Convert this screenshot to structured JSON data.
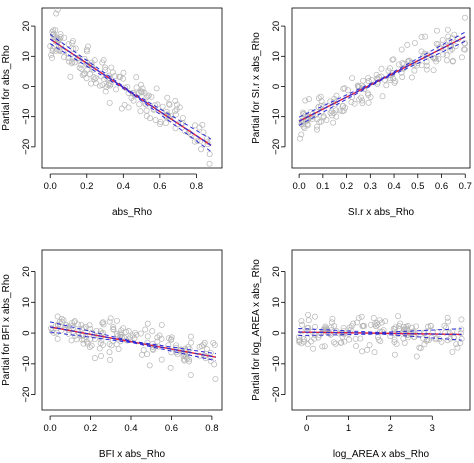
{
  "chart_data": [
    {
      "type": "scatter",
      "xlabel": "abs_Rho",
      "ylabel": "Partial for abs_Rho",
      "xlim": [
        -0.045,
        0.94
      ],
      "ylim": [
        -27,
        26
      ],
      "xticks": [
        0.0,
        0.2,
        0.4,
        0.6,
        0.8
      ],
      "xtick_labels": [
        "0.0",
        "0.2",
        "0.4",
        "0.6",
        "0.8"
      ],
      "yticks": [
        -20,
        -10,
        0,
        10,
        20
      ],
      "ytick_labels": [
        "−20",
        "−10",
        "0",
        "10",
        "20"
      ],
      "grid": false,
      "n_points": 180,
      "noise": 3.2,
      "seed": 11,
      "x_range": [
        0.0,
        0.88
      ],
      "fit": {
        "slope": -40.0,
        "intercept": 15.7
      },
      "ci_width": [
        1.3,
        1.8
      ],
      "series": [
        {
          "values": [
            [
              0.0,
              15.7
            ],
            [
              0.88,
              -19.5
            ]
          ]
        },
        {
          "values": [
            [
              0.0,
              15.7
            ],
            [
              0.88,
              -19.5
            ]
          ]
        }
      ],
      "colors": {
        "points": "#b5b5b5",
        "fit_line": "#e8233b",
        "ci_line": "#2b2bd6"
      }
    },
    {
      "type": "scatter",
      "xlabel": "SI.r x abs_Rho",
      "ylabel": "Partial for SI.r x abs_Rho",
      "xlim": [
        -0.03,
        0.72
      ],
      "ylim": [
        -27,
        26
      ],
      "xticks": [
        0.0,
        0.1,
        0.2,
        0.3,
        0.4,
        0.5,
        0.6,
        0.7
      ],
      "xtick_labels": [
        "0.0",
        "0.1",
        "0.2",
        "0.3",
        "0.4",
        "0.5",
        "0.6",
        "0.7"
      ],
      "yticks": [
        -20,
        -10,
        0,
        10,
        20
      ],
      "ytick_labels": [
        "−20",
        "−10",
        "0",
        "10",
        "20"
      ],
      "grid": false,
      "n_points": 180,
      "noise": 2.8,
      "seed": 23,
      "x_range": [
        0.0,
        0.7
      ],
      "fit": {
        "slope": 40.0,
        "intercept": -11.5
      },
      "ci_width": [
        1.1,
        1.3
      ],
      "series": [
        {
          "values": [
            [
              0.0,
              -11.5
            ],
            [
              0.7,
              16.5
            ]
          ]
        },
        {
          "values": [
            [
              0.0,
              -11.5
            ],
            [
              0.7,
              16.5
            ]
          ]
        }
      ],
      "colors": {
        "points": "#b5b5b5",
        "fit_line": "#e8233b",
        "ci_line": "#2b2bd6"
      }
    },
    {
      "type": "scatter",
      "xlabel": "BFI x abs_Rho",
      "ylabel": "Partial for BFI x abs_Rho",
      "xlim": [
        -0.04,
        0.85
      ],
      "ylim": [
        -25,
        27
      ],
      "xticks": [
        0.0,
        0.2,
        0.4,
        0.6,
        0.8
      ],
      "xtick_labels": [
        "0.0",
        "0.2",
        "0.4",
        "0.6",
        "0.8"
      ],
      "yticks": [
        -20,
        -10,
        0,
        10,
        20
      ],
      "ytick_labels": [
        "−20",
        "−10",
        "0",
        "10",
        "20"
      ],
      "grid": false,
      "n_points": 170,
      "noise": 3.0,
      "seed": 37,
      "x_range": [
        0.0,
        0.82
      ],
      "fit": {
        "slope": -12.0,
        "intercept": 2.0
      },
      "ci_width": [
        1.4,
        0.9
      ],
      "series": [
        {
          "values": [
            [
              0.0,
              2.0
            ],
            [
              0.82,
              -7.8
            ]
          ]
        },
        {
          "values": [
            [
              0.0,
              2.0
            ],
            [
              0.82,
              -7.8
            ]
          ]
        }
      ],
      "colors": {
        "points": "#b5b5b5",
        "fit_line": "#e8233b",
        "ci_line": "#2b2bd6"
      }
    },
    {
      "type": "scatter",
      "xlabel": "log_AREA x abs_Rho",
      "ylabel": "Partial for log_AREA x abs_Rho",
      "xlim": [
        -0.35,
        3.9
      ],
      "ylim": [
        -25,
        27
      ],
      "xticks": [
        0,
        1,
        2,
        3
      ],
      "xtick_labels": [
        "0",
        "1",
        "2",
        "3"
      ],
      "yticks": [
        -20,
        -10,
        0,
        10,
        20
      ],
      "ytick_labels": [
        "−20",
        "−10",
        "0",
        "10",
        "20"
      ],
      "grid": false,
      "n_points": 170,
      "noise": 2.6,
      "seed": 53,
      "x_range": [
        -0.2,
        3.7
      ],
      "fit": {
        "slope": -0.2,
        "intercept": 0.3
      },
      "ci_width": [
        0.9,
        1.6
      ],
      "series": [
        {
          "values": [
            [
              -0.2,
              0.3
            ],
            [
              3.7,
              -0.4
            ]
          ]
        },
        {
          "values": [
            [
              -0.2,
              0.3
            ],
            [
              3.7,
              -0.4
            ]
          ]
        }
      ],
      "colors": {
        "points": "#b5b5b5",
        "fit_line": "#e8233b",
        "ci_line": "#2b2bd6"
      }
    }
  ]
}
